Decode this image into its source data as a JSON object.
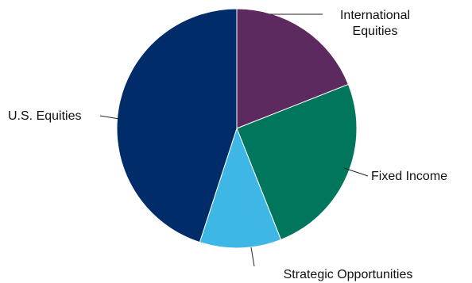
{
  "chart_data": {
    "type": "pie",
    "title": "",
    "legend": "none",
    "slices": [
      {
        "label": [
          "International",
          "Equities"
        ],
        "value": 19,
        "color": "#5c2a5e"
      },
      {
        "label": [
          "Fixed Income"
        ],
        "value": 25,
        "color": "#00775c"
      },
      {
        "label": [
          "Strategic Opportunities"
        ],
        "value": 11,
        "color": "#3fb7e6"
      },
      {
        "label": [
          "U.S. Equities"
        ],
        "value": 45,
        "color": "#002c69"
      }
    ]
  }
}
